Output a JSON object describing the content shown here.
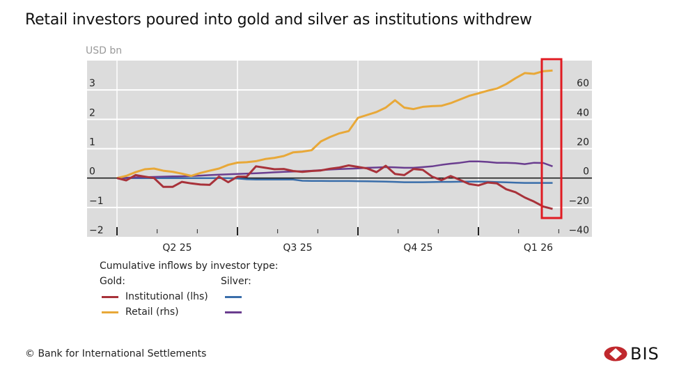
{
  "title": "Retail investors poured into gold and silver as institutions withdrew",
  "footer": "© Bank for International Settlements",
  "logo_text": "BIS",
  "highlight_color": "#e01b22",
  "chart_data": {
    "type": "line",
    "title": "Retail investors poured into gold and silver as institutions withdrew",
    "unit_label": "USD bn",
    "left_axis": {
      "ylim": [
        -2,
        4
      ],
      "ticks": [
        -2,
        -1,
        0,
        1,
        2,
        3
      ]
    },
    "right_axis": {
      "ylim": [
        -40,
        80
      ],
      "ticks": [
        -40,
        -20,
        0,
        20,
        40,
        60
      ]
    },
    "x_ticks": [
      "Q2 25",
      "Q3 25",
      "Q4 25",
      "Q1 26"
    ],
    "quarter_starts": [
      "2025-04-01",
      "2025-07-01",
      "2025-09-30",
      "2025-12-30"
    ],
    "grid": true,
    "background": "#dcdcdc",
    "legend": {
      "heading": "Cumulative inflows by investor type:",
      "gold_label": "Gold:",
      "silver_label": "Silver:",
      "institutional_label": "Institutional (lhs)",
      "retail_label": "Retail (rhs)",
      "placement": "bottom-left"
    },
    "x": [
      "2025-04-01",
      "2025-04-08",
      "2025-04-15",
      "2025-04-22",
      "2025-04-29",
      "2025-05-06",
      "2025-05-13",
      "2025-05-20",
      "2025-05-27",
      "2025-06-03",
      "2025-06-10",
      "2025-06-17",
      "2025-06-24",
      "2025-07-01",
      "2025-07-08",
      "2025-07-15",
      "2025-07-22",
      "2025-07-29",
      "2025-08-05",
      "2025-08-12",
      "2025-08-19",
      "2025-08-26",
      "2025-09-02",
      "2025-09-09",
      "2025-09-16",
      "2025-09-23",
      "2025-09-30",
      "2025-10-07",
      "2025-10-14",
      "2025-10-21",
      "2025-10-28",
      "2025-11-04",
      "2025-11-11",
      "2025-11-18",
      "2025-11-25",
      "2025-12-02",
      "2025-12-09",
      "2025-12-16",
      "2025-12-23",
      "2025-12-30",
      "2026-01-06",
      "2026-01-13",
      "2026-01-20",
      "2026-01-27",
      "2026-02-03",
      "2026-02-10",
      "2026-02-17",
      "2026-02-24"
    ],
    "series": [
      {
        "name": "Gold Institutional (lhs)",
        "metal": "gold",
        "axis": "left",
        "color": "#a8323a",
        "values": [
          0,
          -0.08,
          0.1,
          0.05,
          0,
          -0.3,
          -0.3,
          -0.13,
          -0.18,
          -0.22,
          -0.23,
          0.05,
          -0.14,
          0.05,
          0.05,
          0.4,
          0.35,
          0.3,
          0.31,
          0.24,
          0.21,
          0.24,
          0.26,
          0.32,
          0.36,
          0.43,
          0.38,
          0.33,
          0.2,
          0.42,
          0.14,
          0.1,
          0.31,
          0.28,
          0.05,
          -0.07,
          0.07,
          -0.06,
          -0.2,
          -0.25,
          -0.15,
          -0.18,
          -0.38,
          -0.48,
          -0.66,
          -0.8,
          -0.97,
          -1.05
        ]
      },
      {
        "name": "Gold Retail (rhs)",
        "metal": "gold",
        "axis": "right",
        "color": "#e8a838",
        "values": [
          0,
          1.5,
          4,
          6,
          6.5,
          5,
          4.3,
          3,
          1.5,
          3.5,
          5,
          6.5,
          9,
          10.5,
          10.8,
          11.5,
          13,
          13.8,
          15,
          17.5,
          18,
          19,
          25,
          28,
          30.5,
          32,
          41,
          43,
          45,
          48,
          53,
          48,
          47,
          48.5,
          49,
          49.2,
          51,
          53.5,
          56,
          57.7,
          59.5,
          61,
          64,
          68,
          71.5,
          71,
          72.8,
          73.2
        ]
      },
      {
        "name": "Silver Institutional",
        "metal": "silver",
        "axis": "right",
        "color": "#3a6eaa",
        "values": [
          0,
          0,
          0,
          0,
          0,
          0,
          0,
          0,
          0,
          0,
          0,
          0,
          0,
          -0.3,
          -0.8,
          -1,
          -1,
          -1,
          -1,
          -1,
          -1.8,
          -1.9,
          -1.9,
          -2,
          -2,
          -2,
          -2.1,
          -2.2,
          -2.3,
          -2.4,
          -2.6,
          -2.8,
          -2.8,
          -2.8,
          -2.7,
          -2.6,
          -2.6,
          -2.5,
          -2.4,
          -2.4,
          -2.5,
          -2.7,
          -2.9,
          -3.1,
          -3.3,
          -3.3,
          -3.3,
          -3.3
        ]
      },
      {
        "name": "Silver Retail",
        "metal": "silver",
        "axis": "right",
        "color": "#6a3d8f",
        "values": [
          0,
          0.2,
          0.4,
          0.6,
          0.8,
          1,
          1.1,
          1.2,
          1.4,
          1.7,
          2,
          2.3,
          2.6,
          2.8,
          3,
          3.3,
          3.6,
          3.9,
          4.2,
          4.5,
          4.7,
          5,
          5.4,
          5.8,
          6.1,
          6.4,
          6.6,
          7,
          7.2,
          7.5,
          7.3,
          7,
          7,
          7.5,
          8,
          9,
          9.8,
          10.4,
          11.3,
          11.3,
          11,
          10.4,
          10.4,
          10.2,
          9.5,
          10.4,
          10.3,
          8
        ]
      }
    ]
  }
}
